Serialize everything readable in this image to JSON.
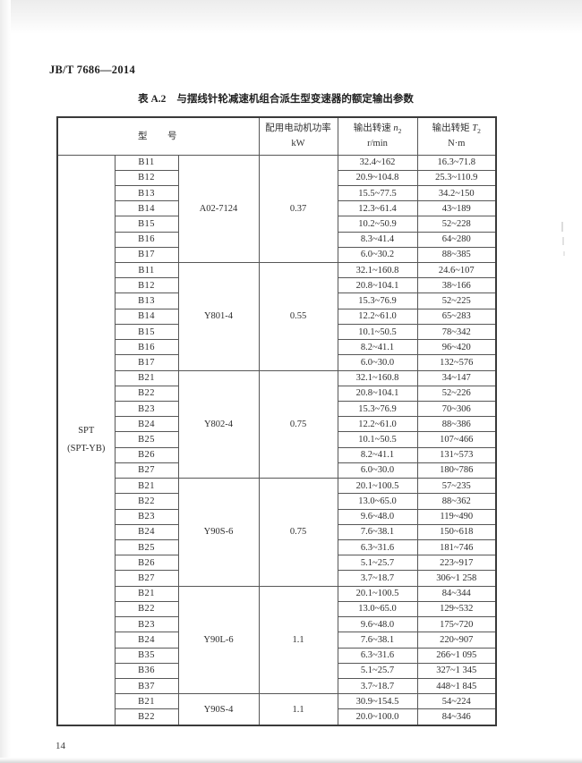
{
  "header": {
    "doc_number": "JB/T 7686—2014"
  },
  "footer": {
    "page_number": "14"
  },
  "table": {
    "caption_label": "表 A.2",
    "caption_text": "与摆线针轮减速机组合派生型变速器的额定输出参数",
    "columns": {
      "model_label": "型 号",
      "power_line1": "配用电动机功率",
      "power_line2": "kW",
      "speed_line1": "输出转速",
      "speed_var": "n",
      "speed_sub": "2",
      "speed_line2": "r/min",
      "torque_line1": "输出转矩",
      "torque_var": "T",
      "torque_sub": "2",
      "torque_line2": "N·m"
    },
    "series_name": "SPT",
    "series_name2": "(SPT-YB)",
    "groups": [
      {
        "motor": "A02-7124",
        "power": "0.37",
        "rows": [
          {
            "model": "B11",
            "speed": "32.4~162",
            "torque": "16.3~71.8"
          },
          {
            "model": "B12",
            "speed": "20.9~104.8",
            "torque": "25.3~110.9"
          },
          {
            "model": "B13",
            "speed": "15.5~77.5",
            "torque": "34.2~150"
          },
          {
            "model": "B14",
            "speed": "12.3~61.4",
            "torque": "43~189"
          },
          {
            "model": "B15",
            "speed": "10.2~50.9",
            "torque": "52~228"
          },
          {
            "model": "B16",
            "speed": "8.3~41.4",
            "torque": "64~280"
          },
          {
            "model": "B17",
            "speed": "6.0~30.2",
            "torque": "88~385"
          }
        ]
      },
      {
        "motor": "Y801-4",
        "power": "0.55",
        "rows": [
          {
            "model": "B11",
            "speed": "32.1~160.8",
            "torque": "24.6~107"
          },
          {
            "model": "B12",
            "speed": "20.8~104.1",
            "torque": "38~166"
          },
          {
            "model": "B13",
            "speed": "15.3~76.9",
            "torque": "52~225"
          },
          {
            "model": "B14",
            "speed": "12.2~61.0",
            "torque": "65~283"
          },
          {
            "model": "B15",
            "speed": "10.1~50.5",
            "torque": "78~342"
          },
          {
            "model": "B16",
            "speed": "8.2~41.1",
            "torque": "96~420"
          },
          {
            "model": "B17",
            "speed": "6.0~30.0",
            "torque": "132~576"
          }
        ]
      },
      {
        "motor": "Y802-4",
        "power": "0.75",
        "rows": [
          {
            "model": "B21",
            "speed": "32.1~160.8",
            "torque": "34~147"
          },
          {
            "model": "B22",
            "speed": "20.8~104.1",
            "torque": "52~226"
          },
          {
            "model": "B23",
            "speed": "15.3~76.9",
            "torque": "70~306"
          },
          {
            "model": "B24",
            "speed": "12.2~61.0",
            "torque": "88~386"
          },
          {
            "model": "B25",
            "speed": "10.1~50.5",
            "torque": "107~466"
          },
          {
            "model": "B26",
            "speed": "8.2~41.1",
            "torque": "131~573"
          },
          {
            "model": "B27",
            "speed": "6.0~30.0",
            "torque": "180~786"
          }
        ]
      },
      {
        "motor": "Y90S-6",
        "power": "0.75",
        "rows": [
          {
            "model": "B21",
            "speed": "20.1~100.5",
            "torque": "57~235"
          },
          {
            "model": "B22",
            "speed": "13.0~65.0",
            "torque": "88~362"
          },
          {
            "model": "B23",
            "speed": "9.6~48.0",
            "torque": "119~490"
          },
          {
            "model": "B24",
            "speed": "7.6~38.1",
            "torque": "150~618"
          },
          {
            "model": "B25",
            "speed": "6.3~31.6",
            "torque": "181~746"
          },
          {
            "model": "B26",
            "speed": "5.1~25.7",
            "torque": "223~917"
          },
          {
            "model": "B27",
            "speed": "3.7~18.7",
            "torque": "306~1 258"
          }
        ]
      },
      {
        "motor": "Y90L-6",
        "power": "1.1",
        "rows": [
          {
            "model": "B21",
            "speed": "20.1~100.5",
            "torque": "84~344"
          },
          {
            "model": "B22",
            "speed": "13.0~65.0",
            "torque": "129~532"
          },
          {
            "model": "B23",
            "speed": "9.6~48.0",
            "torque": "175~720"
          },
          {
            "model": "B24",
            "speed": "7.6~38.1",
            "torque": "220~907"
          },
          {
            "model": "B35",
            "speed": "6.3~31.6",
            "torque": "266~1 095"
          },
          {
            "model": "B36",
            "speed": "5.1~25.7",
            "torque": "327~1 345"
          },
          {
            "model": "B37",
            "speed": "3.7~18.7",
            "torque": "448~1 845"
          }
        ]
      },
      {
        "motor": "Y90S-4",
        "power": "1.1",
        "rows": [
          {
            "model": "B21",
            "speed": "30.9~154.5",
            "torque": "54~224"
          },
          {
            "model": "B22",
            "speed": "20.0~100.0",
            "torque": "84~346"
          }
        ]
      }
    ]
  }
}
